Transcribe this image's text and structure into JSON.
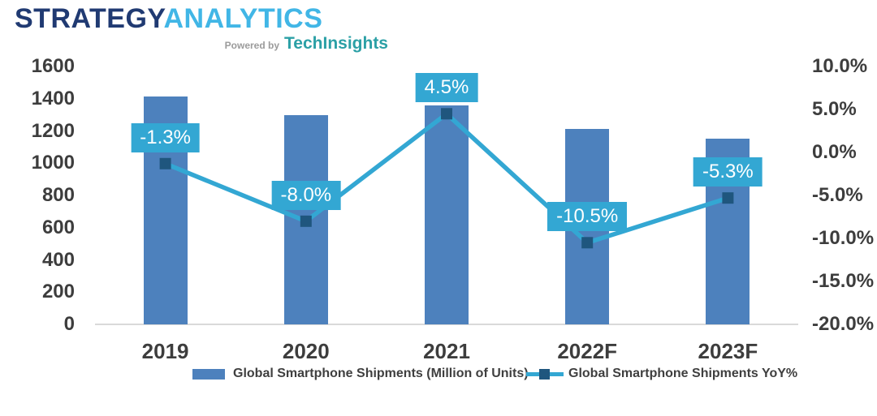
{
  "logo": {
    "brand_primary": "STRATEGY",
    "brand_secondary": "ANALYTICS",
    "powered_by": "Powered by",
    "powered_brand": "TechInsights"
  },
  "colors": {
    "bar": "#4d81bd",
    "line": "#33a7d3",
    "marker": "#1f567e",
    "label_box": "#33a7d3",
    "label_text": "#ffffff",
    "axis_text": "#3d3d3d",
    "axis_line": "#d9d9d9",
    "brand_primary": "#203a72",
    "brand_secondary": "#41b6e6",
    "powered_brand": "#2ba0a6"
  },
  "chart_data": {
    "type": "bar",
    "subtype": "bar-line combo, dual axis",
    "categories": [
      "2019",
      "2020",
      "2021",
      "2022F",
      "2023F"
    ],
    "series": [
      {
        "name": "Global Smartphone Shipments (Million of Units)",
        "type": "bar",
        "axis": "left",
        "values": [
          1413,
          1300,
          1358,
          1215,
          1151
        ]
      },
      {
        "name": "Global Smartphone Shipments YoY%",
        "type": "line",
        "axis": "right",
        "values": [
          -1.3,
          -8.0,
          4.5,
          -10.5,
          -5.3
        ],
        "labels": [
          "-1.3%",
          "-8.0%",
          "4.5%",
          "-10.5%",
          "-5.3%"
        ]
      }
    ],
    "left_axis": {
      "min": 0,
      "max": 1600,
      "ticks": [
        "1600",
        "1400",
        "1200",
        "1000",
        "800",
        "600",
        "400",
        "200",
        "0"
      ],
      "tick_values": [
        1600,
        1400,
        1200,
        1000,
        800,
        600,
        400,
        200,
        0
      ]
    },
    "right_axis": {
      "min": -20,
      "max": 10,
      "ticks": [
        "10.0%",
        "5.0%",
        "0.0%",
        "-5.0%",
        "-10.0%",
        "-15.0%",
        "-20.0%"
      ],
      "tick_values": [
        10,
        5,
        0,
        -5,
        -10,
        -15,
        -20
      ]
    },
    "grid": "off",
    "legend_position": "bottom"
  }
}
